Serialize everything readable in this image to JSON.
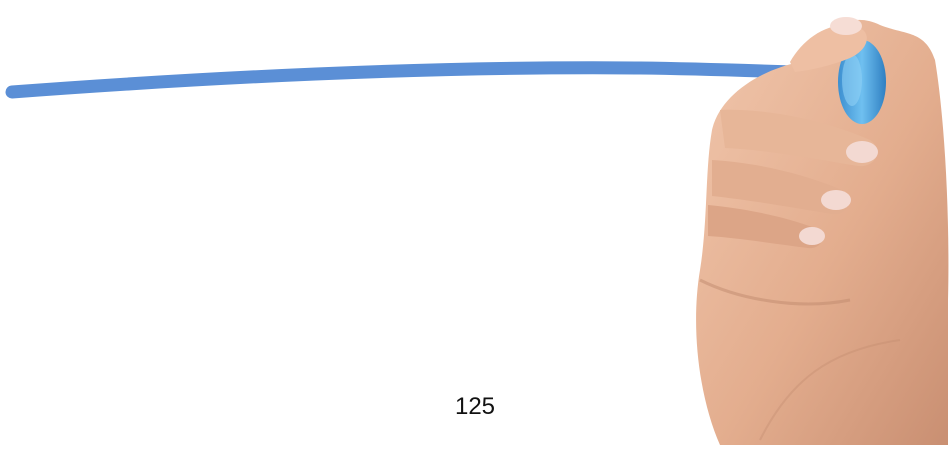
{
  "photo": {
    "page_number": "125",
    "colors": {
      "background": "#ffffff",
      "marker_line": "#5b8fd6",
      "marker_cap": "#4aa3e0",
      "skin": "#e8b89a",
      "skin_shadow": "#c98f72",
      "nail": "#f3d9d2",
      "text": "#111111"
    }
  }
}
